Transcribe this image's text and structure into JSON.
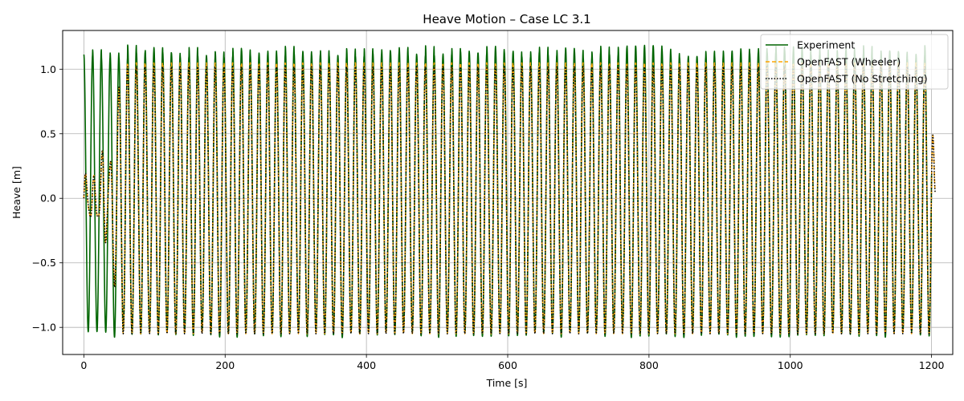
{
  "chart_data": {
    "type": "line",
    "title": "Heave Motion – Case LC 3.1",
    "xlabel": "Time [s]",
    "ylabel": "Heave [m]",
    "xlim": [
      -30,
      1230
    ],
    "ylim": [
      -1.21,
      1.3
    ],
    "xticks": [
      0,
      200,
      400,
      600,
      800,
      1000,
      1200
    ],
    "xtick_labels": [
      "0",
      "200",
      "400",
      "600",
      "800",
      "1000",
      "1200"
    ],
    "yticks": [
      -1.0,
      -0.5,
      0.0,
      0.5,
      1.0
    ],
    "ytick_labels": [
      "−1.0",
      "−0.5",
      "0.0",
      "0.5",
      "1.0"
    ],
    "grid": true,
    "legend_position": "top-right",
    "series": [
      {
        "name": "Experiment",
        "color": "#006400",
        "style": "solid",
        "t_start": 0,
        "t_end": 1200,
        "wave_period": 12.4,
        "amplitude_max": 1.16,
        "amplitude_min": -1.05,
        "peak_range": [
          1.09,
          1.19
        ],
        "trough_range": [
          -1.08,
          -1.03
        ]
      },
      {
        "name": "OpenFAST (Wheeler)",
        "color": "#FFA500",
        "style": "dashed",
        "t_start": 0,
        "t_end": 1205,
        "wave_period": 12.4,
        "amplitude_max": 1.05,
        "amplitude_min": -1.05,
        "startup_transient_end": 55,
        "end_value": 0.05
      },
      {
        "name": "OpenFAST (No Stretching)",
        "color": "#000000",
        "style": "dotted",
        "t_start": 0,
        "t_end": 1205,
        "wave_period": 12.4,
        "amplitude_max": 1.02,
        "amplitude_min": -1.05,
        "startup_transient_end": 55,
        "end_value": 0.05
      }
    ]
  }
}
